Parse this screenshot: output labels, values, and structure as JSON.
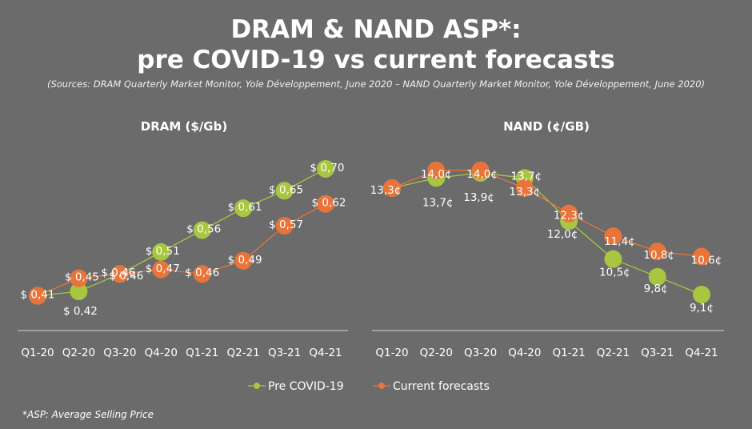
{
  "header": {
    "title_line1": "DRAM & NAND ASP*:",
    "title_line2": "pre COVID-19 vs current forecasts",
    "sources": "(Sources: DRAM Quarterly Market Monitor, Yole Développement, June 2020 – NAND Quarterly Market Monitor, Yole Développement, June 2020)"
  },
  "colors": {
    "pre": "#a8c640",
    "current": "#e8743a",
    "background": "#6b6b6b"
  },
  "legend": {
    "pre_label": "Pre COVID-19",
    "current_label": "Current forecasts"
  },
  "footnote": "*ASP: Average Selling Price",
  "chart_data": [
    {
      "type": "line",
      "title": "DRAM ($/Gb)",
      "categories": [
        "Q1-20",
        "Q2-20",
        "Q3-20",
        "Q4-20",
        "Q1-21",
        "Q2-21",
        "Q3-21",
        "Q4-21"
      ],
      "ylim": [
        0.38,
        0.72
      ],
      "series": [
        {
          "name": "Pre COVID-19",
          "values": [
            0.41,
            0.42,
            0.46,
            0.51,
            0.56,
            0.61,
            0.65,
            0.7
          ],
          "labels": [
            "",
            "$ 0,42",
            "$ 0,46",
            "$ 0,51",
            "$ 0,56",
            "$ 0,61",
            "$ 0,65",
            "$ 0,70"
          ]
        },
        {
          "name": "Current forecasts",
          "values": [
            0.41,
            0.45,
            0.46,
            0.47,
            0.46,
            0.49,
            0.57,
            0.62
          ],
          "labels": [
            "$ 0,41",
            "$ 0,45",
            "$ 0,46",
            "$ 0,47",
            "$ 0,46",
            "$ 0,49",
            "$ 0,57",
            "$ 0,62"
          ]
        }
      ]
    },
    {
      "type": "line",
      "title": "NAND (¢/GB)",
      "categories": [
        "Q1-20",
        "Q2-20",
        "Q3-20",
        "Q4-20",
        "Q1-21",
        "Q2-21",
        "Q3-21",
        "Q4-21"
      ],
      "ylim": [
        8.5,
        14.5
      ],
      "series": [
        {
          "name": "Pre COVID-19",
          "values": [
            13.3,
            13.7,
            13.9,
            13.7,
            12.0,
            10.5,
            9.8,
            9.1
          ],
          "labels": [
            "",
            "13,7¢",
            "13,9¢",
            "13,7¢",
            "12,0¢",
            "10,5¢",
            "9,8¢",
            "9,1¢"
          ]
        },
        {
          "name": "Current forecasts",
          "values": [
            13.3,
            14.0,
            14.0,
            13.3,
            12.3,
            11.4,
            10.8,
            10.6
          ],
          "labels": [
            "13,3¢",
            "14,0¢",
            "14,0¢",
            "13,3¢",
            "12,3¢",
            "11,4¢",
            "10,8¢",
            "10,6¢"
          ]
        }
      ]
    }
  ]
}
